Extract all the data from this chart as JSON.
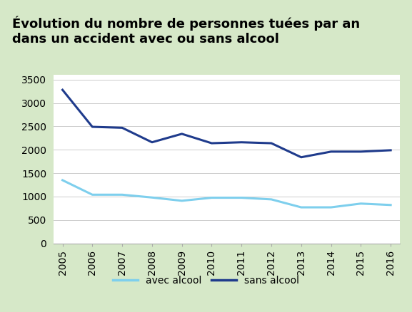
{
  "title": "Évolution du nombre de personnes tuées par an\ndans un accident avec ou sans alcool",
  "years": [
    2005,
    2006,
    2007,
    2008,
    2009,
    2010,
    2011,
    2012,
    2013,
    2014,
    2015,
    2016
  ],
  "avec_alcool": [
    1350,
    1040,
    1040,
    980,
    910,
    975,
    975,
    940,
    770,
    770,
    850,
    820
  ],
  "sans_alcool": [
    3280,
    2490,
    2470,
    2160,
    2340,
    2140,
    2160,
    2140,
    1840,
    1960,
    1960,
    1990
  ],
  "color_avec": "#7ecfed",
  "color_sans": "#1f3b8c",
  "ylim": [
    0,
    3600
  ],
  "yticks": [
    0,
    500,
    1000,
    1500,
    2000,
    2500,
    3000,
    3500
  ],
  "title_bg": "#d6e8c8",
  "chart_bg": "#ffffff",
  "outer_bg": "#d6e8c8",
  "legend_avec": "avec alcool",
  "legend_sans": "sans alcool",
  "title_fontsize": 13,
  "axis_fontsize": 10,
  "legend_fontsize": 10
}
